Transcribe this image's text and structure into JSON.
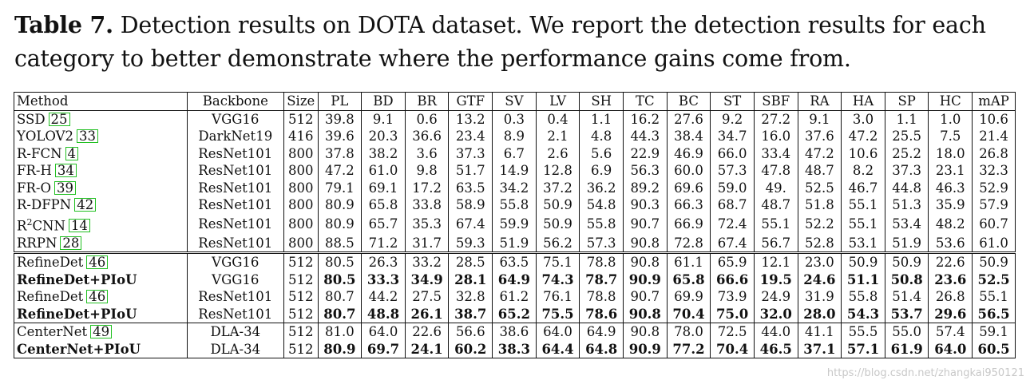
{
  "caption": {
    "label": "Table 7.",
    "text": "Detection results on DOTA dataset. We report the detection results for each category to better demonstrate where the performance gains come from."
  },
  "table": {
    "columns": [
      "Method",
      "Backbone",
      "Size",
      "PL",
      "BD",
      "BR",
      "GTF",
      "SV",
      "LV",
      "SH",
      "TC",
      "BC",
      "ST",
      "SBF",
      "RA",
      "HA",
      "SP",
      "HC",
      "mAP"
    ],
    "groups": [
      [
        {
          "method": "SSD",
          "cite": "25",
          "backbone": "VGG16",
          "size": "512",
          "values": [
            "39.8",
            "9.1",
            "0.6",
            "13.2",
            "0.3",
            "0.4",
            "1.1",
            "16.2",
            "27.6",
            "9.2",
            "27.2",
            "9.1",
            "3.0",
            "1.1",
            "1.0",
            "10.6"
          ]
        },
        {
          "method": "YOLOV2",
          "cite": "33",
          "backbone": "DarkNet19",
          "size": "416",
          "values": [
            "39.6",
            "20.3",
            "36.6",
            "23.4",
            "8.9",
            "2.1",
            "4.8",
            "44.3",
            "38.4",
            "34.7",
            "16.0",
            "37.6",
            "47.2",
            "25.5",
            "7.5",
            "21.4"
          ]
        },
        {
          "method": "R-FCN",
          "cite": "4",
          "backbone": "ResNet101",
          "size": "800",
          "values": [
            "37.8",
            "38.2",
            "3.6",
            "37.3",
            "6.7",
            "2.6",
            "5.6",
            "22.9",
            "46.9",
            "66.0",
            "33.4",
            "47.2",
            "10.6",
            "25.2",
            "18.0",
            "26.8"
          ]
        },
        {
          "method": "FR-H",
          "cite": "34",
          "backbone": "ResNet101",
          "size": "800",
          "values": [
            "47.2",
            "61.0",
            "9.8",
            "51.7",
            "14.9",
            "12.8",
            "6.9",
            "56.3",
            "60.0",
            "57.3",
            "47.8",
            "48.7",
            "8.2",
            "37.3",
            "23.1",
            "32.3"
          ]
        },
        {
          "method": "FR-O",
          "cite": "39",
          "backbone": "ResNet101",
          "size": "800",
          "values": [
            "79.1",
            "69.1",
            "17.2",
            "63.5",
            "34.2",
            "37.2",
            "36.2",
            "89.2",
            "69.6",
            "59.0",
            "49.",
            "52.5",
            "46.7",
            "44.8",
            "46.3",
            "52.9"
          ]
        },
        {
          "method": "R-DFPN",
          "cite": "42",
          "backbone": "ResNet101",
          "size": "800",
          "values": [
            "80.9",
            "65.8",
            "33.8",
            "58.9",
            "55.8",
            "50.9",
            "54.8",
            "90.3",
            "66.3",
            "68.7",
            "48.7",
            "51.8",
            "55.1",
            "51.3",
            "35.9",
            "57.9"
          ]
        },
        {
          "method": "R",
          "sup": "2",
          "method_rest": "CNN",
          "cite": "14",
          "backbone": "ResNet101",
          "size": "800",
          "values": [
            "80.9",
            "65.7",
            "35.3",
            "67.4",
            "59.9",
            "50.9",
            "55.8",
            "90.7",
            "66.9",
            "72.4",
            "55.1",
            "52.2",
            "55.1",
            "53.4",
            "48.2",
            "60.7"
          ]
        },
        {
          "method": "RRPN",
          "cite": "28",
          "backbone": "ResNet101",
          "size": "800",
          "values": [
            "88.5",
            "71.2",
            "31.7",
            "59.3",
            "51.9",
            "56.2",
            "57.3",
            "90.8",
            "72.8",
            "67.4",
            "56.7",
            "52.8",
            "53.1",
            "51.9",
            "53.6",
            "61.0"
          ]
        }
      ],
      [
        {
          "method": "RefineDet",
          "cite": "46",
          "backbone": "VGG16",
          "size": "512",
          "values": [
            "80.5",
            "26.3",
            "33.2",
            "28.5",
            "63.5",
            "75.1",
            "78.8",
            "90.8",
            "61.1",
            "65.9",
            "12.1",
            "23.0",
            "50.9",
            "50.9",
            "22.6",
            "50.9"
          ]
        },
        {
          "method": "RefineDet+PIoU",
          "bold": true,
          "backbone": "VGG16",
          "size": "512",
          "values": [
            "80.5",
            "33.3",
            "34.9",
            "28.1",
            "64.9",
            "74.3",
            "78.7",
            "90.9",
            "65.8",
            "66.6",
            "19.5",
            "24.6",
            "51.1",
            "50.8",
            "23.6",
            "52.5"
          ]
        },
        {
          "method": "RefineDet",
          "cite": "46",
          "backbone": "ResNet101",
          "size": "512",
          "values": [
            "80.7",
            "44.2",
            "27.5",
            "32.8",
            "61.2",
            "76.1",
            "78.8",
            "90.7",
            "69.9",
            "73.9",
            "24.9",
            "31.9",
            "55.8",
            "51.4",
            "26.8",
            "55.1"
          ]
        },
        {
          "method": "RefineDet+PIoU",
          "bold": true,
          "backbone": "ResNet101",
          "size": "512",
          "values": [
            "80.7",
            "48.8",
            "26.1",
            "38.7",
            "65.2",
            "75.5",
            "78.6",
            "90.8",
            "70.4",
            "75.0",
            "32.0",
            "28.0",
            "54.3",
            "53.7",
            "29.6",
            "56.5"
          ]
        }
      ],
      [
        {
          "method": "CenterNet",
          "cite": "49",
          "backbone": "DLA-34",
          "size": "512",
          "values": [
            "81.0",
            "64.0",
            "22.6",
            "56.6",
            "38.6",
            "64.0",
            "64.9",
            "90.8",
            "78.0",
            "72.5",
            "44.0",
            "41.1",
            "55.5",
            "55.0",
            "57.4",
            "59.1"
          ]
        },
        {
          "method": "CenterNet+PIoU",
          "bold": true,
          "backbone": "DLA-34",
          "size": "512",
          "values": [
            "80.9",
            "69.7",
            "24.1",
            "60.2",
            "38.3",
            "64.4",
            "64.8",
            "90.9",
            "77.2",
            "70.4",
            "46.5",
            "37.1",
            "57.1",
            "61.9",
            "64.0",
            "60.5"
          ]
        }
      ]
    ]
  },
  "watermark": "https://blog.csdn.net/zhangkai950121"
}
